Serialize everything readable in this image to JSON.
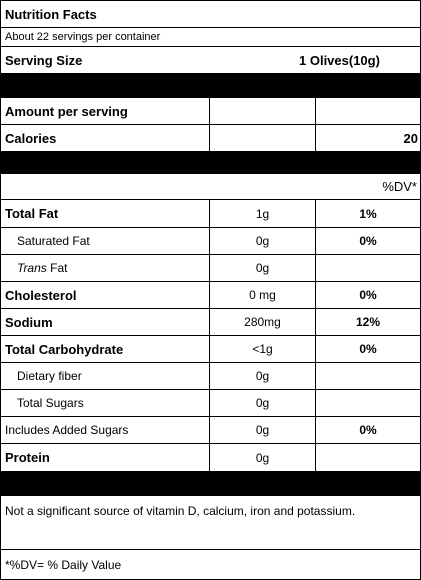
{
  "label": {
    "title": "Nutrition Facts",
    "servings_per_container": "About 22 servings per container",
    "serving_size_label": "Serving Size",
    "serving_size_value": "1 Olives(10g)",
    "amount_per_serving": "Amount per serving",
    "calories_label": "Calories",
    "calories_value": "20",
    "dv_header": "%DV*",
    "nutrients": [
      {
        "name": "Total Fat",
        "amount": "1g",
        "dv": "1%"
      },
      {
        "name": "Saturated Fat",
        "amount": "0g",
        "dv": "0%"
      },
      {
        "name_italic": "Trans",
        "name_rest": " Fat",
        "amount": "0g",
        "dv": ""
      },
      {
        "name": "Cholesterol",
        "amount": "0 mg",
        "dv": "0%"
      },
      {
        "name": "Sodium",
        "amount": "280mg",
        "dv": "12%"
      },
      {
        "name": "Total Carbohydrate",
        "amount": "<1g",
        "dv": "0%"
      },
      {
        "name": "Dietary fiber",
        "amount": "0g",
        "dv": ""
      },
      {
        "name": "Total Sugars",
        "amount": "0g",
        "dv": ""
      },
      {
        "name": "Includes Added Sugars",
        "amount": "0g",
        "dv": "0%"
      },
      {
        "name": "Protein",
        "amount": "0g",
        "dv": ""
      }
    ],
    "footnote_vitamins": "Not a significant source of vitamin D, calcium, iron and potassium.",
    "footnote_dv": "*%DV= % Daily Value"
  },
  "colors": {
    "bar": "#000000",
    "border": "#000000",
    "background": "#ffffff"
  }
}
